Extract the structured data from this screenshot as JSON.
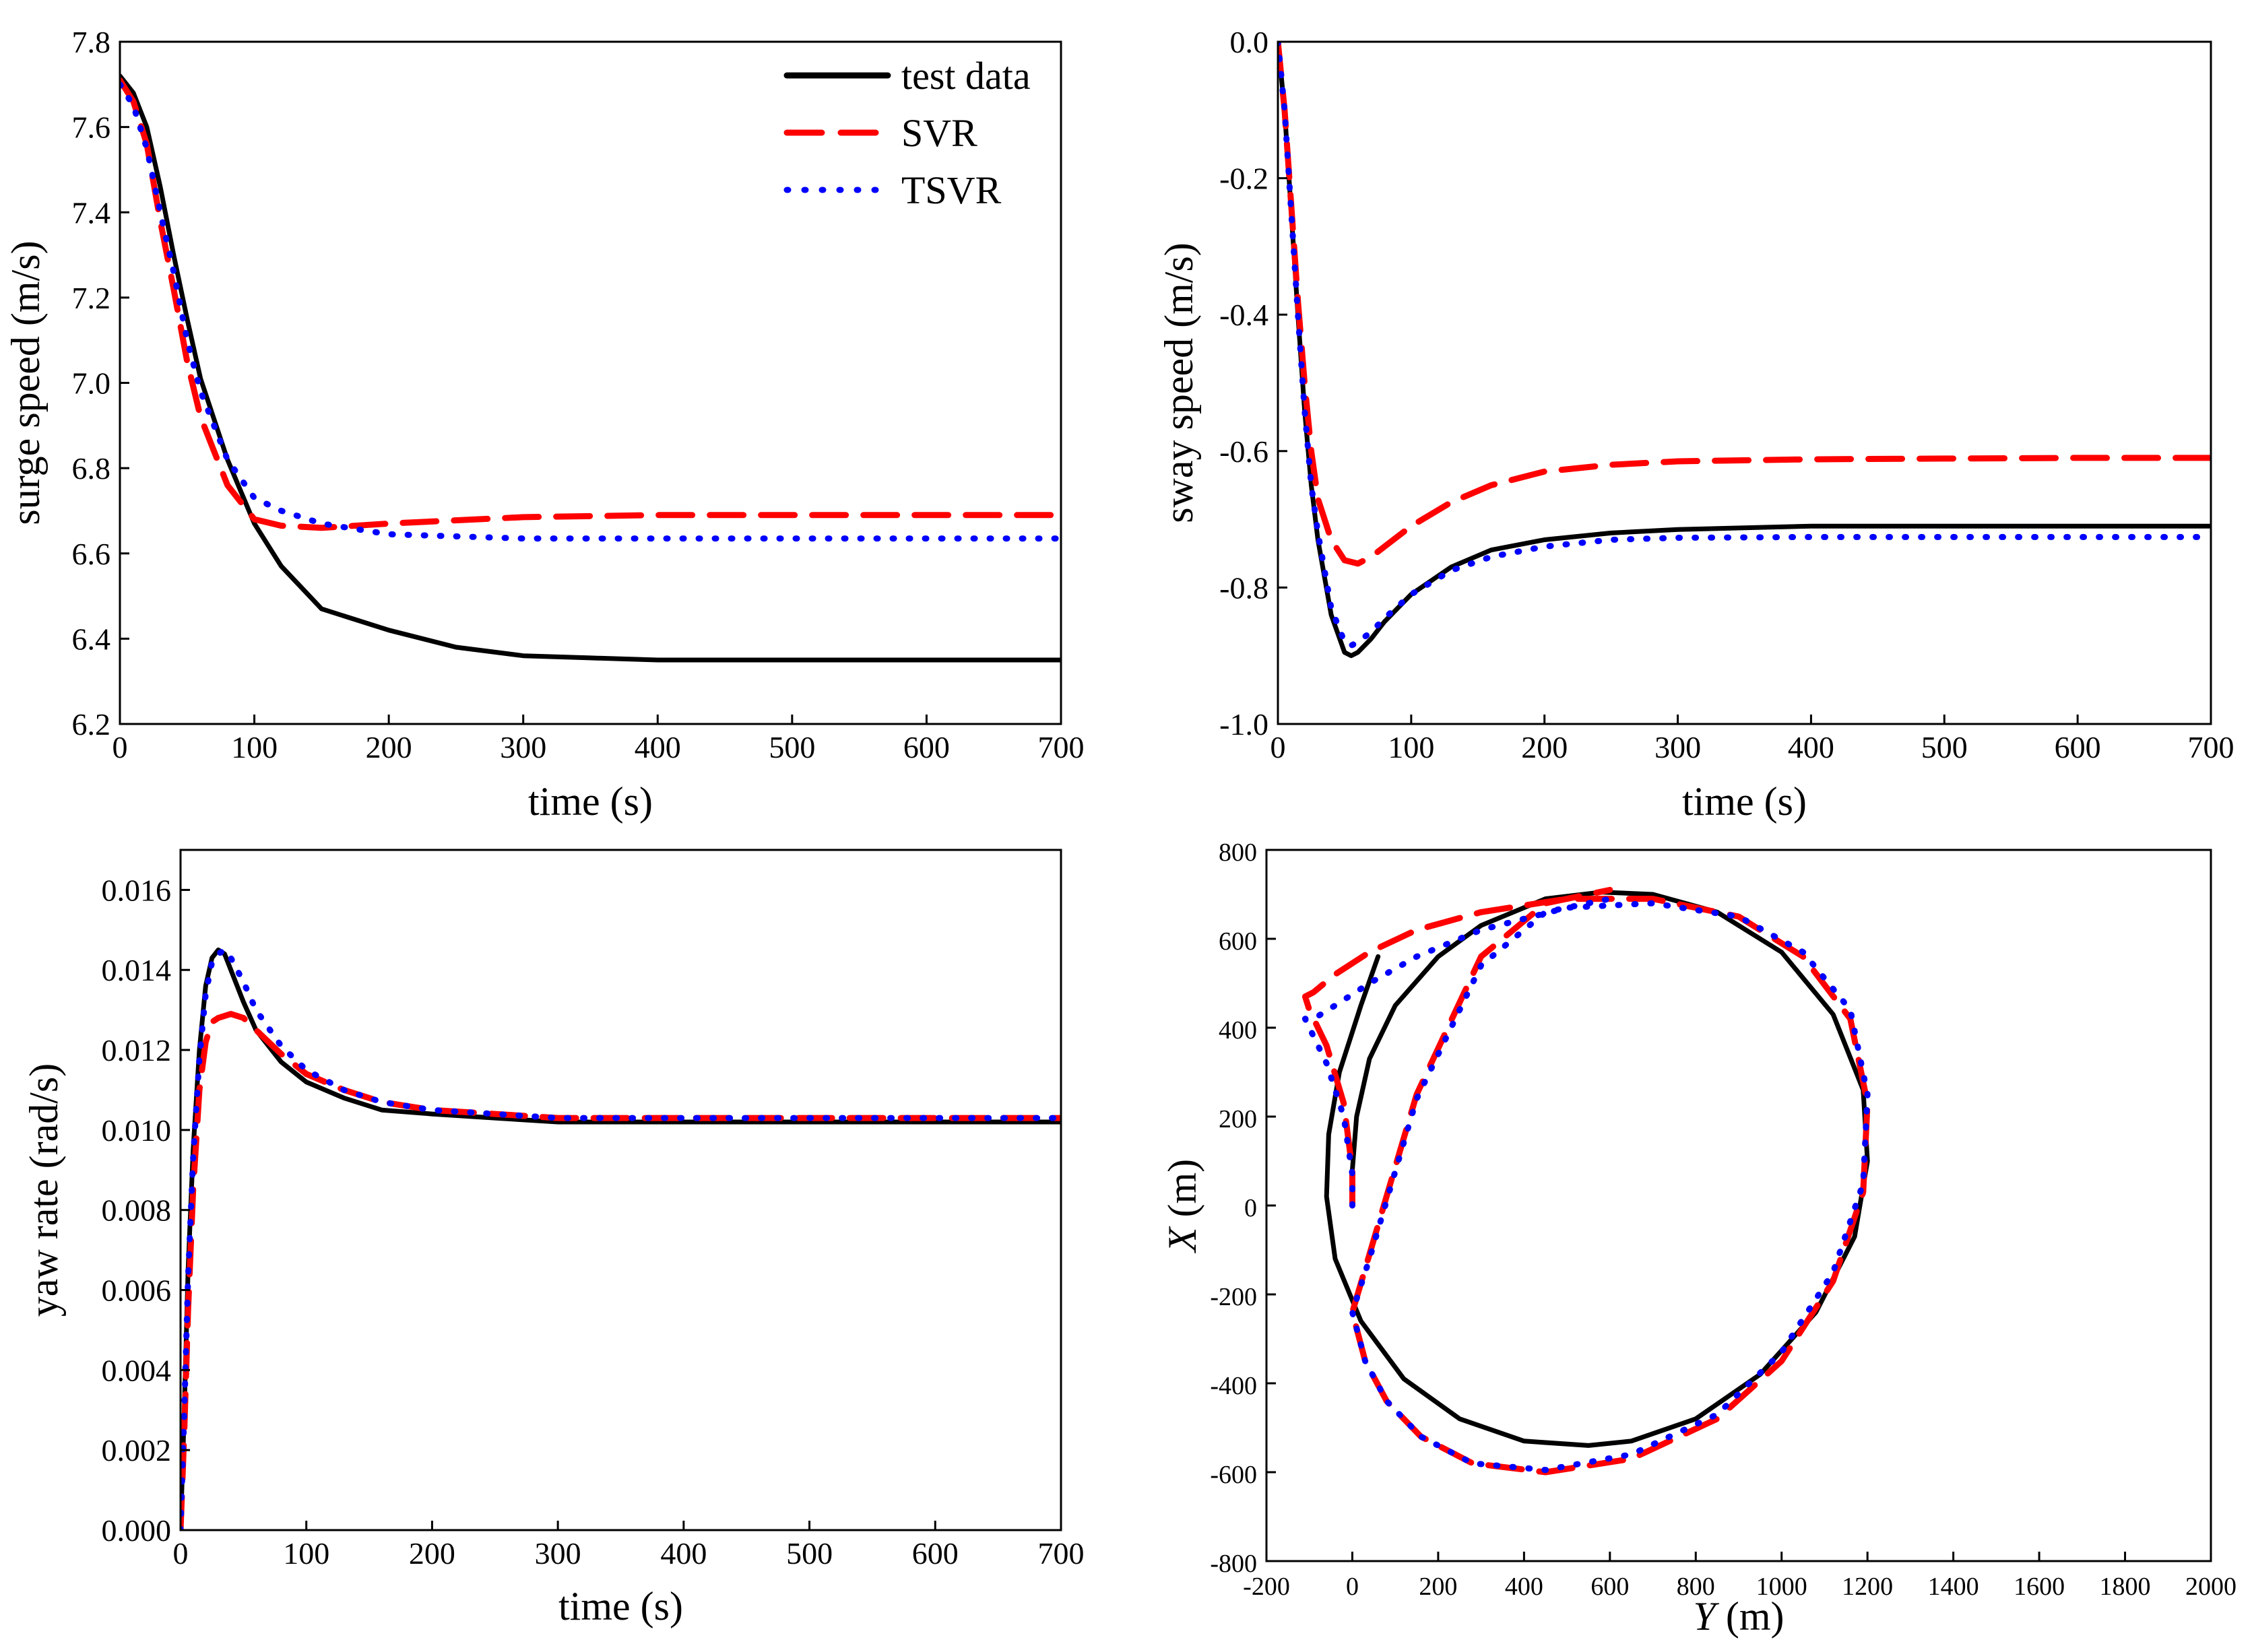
{
  "series_styles": {
    "test": {
      "name": "test data",
      "color": "#000000",
      "dash": "solid"
    },
    "svr": {
      "name": "SVR",
      "color": "#ff0000",
      "dash": "dashed"
    },
    "tsvr": {
      "name": "TSVR",
      "color": "#0000ff",
      "dash": "dotted"
    }
  },
  "chart_data": [
    {
      "id": "surge",
      "type": "line",
      "title": "",
      "xlabel": "time (s)",
      "ylabel": "surge speed (m/s)",
      "xlim": [
        0,
        700
      ],
      "ylim": [
        6.2,
        7.8
      ],
      "xticks": [
        0,
        100,
        200,
        300,
        400,
        500,
        600,
        700
      ],
      "xtick_labels": [
        "0",
        "100",
        "200",
        "300",
        "400",
        "500",
        "600",
        "700"
      ],
      "yticks": [
        6.2,
        6.4,
        6.6,
        6.8,
        7.0,
        7.2,
        7.4,
        7.6,
        7.8
      ],
      "ytick_labels": [
        "6.2",
        "6.4",
        "6.6",
        "6.8",
        "7.0",
        "7.2",
        "7.4",
        "7.6",
        "7.8"
      ],
      "legend": {
        "position": "top-right",
        "entries": [
          "test data",
          "SVR",
          "TSVR"
        ]
      },
      "series": [
        {
          "name": "test data",
          "key": "test",
          "x": [
            0,
            10,
            20,
            30,
            40,
            50,
            60,
            80,
            100,
            120,
            150,
            200,
            250,
            300,
            350,
            400,
            500,
            600,
            700
          ],
          "y": [
            7.72,
            7.68,
            7.6,
            7.46,
            7.3,
            7.15,
            7.01,
            6.82,
            6.67,
            6.57,
            6.47,
            6.42,
            6.38,
            6.36,
            6.355,
            6.35,
            6.35,
            6.35,
            6.35
          ]
        },
        {
          "name": "SVR",
          "key": "svr",
          "x": [
            0,
            10,
            20,
            30,
            40,
            50,
            60,
            80,
            100,
            120,
            150,
            200,
            300,
            400,
            500,
            600,
            700
          ],
          "y": [
            7.71,
            7.66,
            7.56,
            7.38,
            7.22,
            7.05,
            6.92,
            6.76,
            6.68,
            6.665,
            6.66,
            6.67,
            6.685,
            6.69,
            6.69,
            6.69,
            6.69
          ]
        },
        {
          "name": "TSVR",
          "key": "tsvr",
          "x": [
            0,
            10,
            20,
            30,
            40,
            50,
            60,
            80,
            100,
            120,
            150,
            200,
            300,
            400,
            500,
            600,
            700
          ],
          "y": [
            7.7,
            7.65,
            7.55,
            7.4,
            7.26,
            7.1,
            6.98,
            6.82,
            6.73,
            6.7,
            6.67,
            6.645,
            6.635,
            6.635,
            6.635,
            6.635,
            6.635
          ]
        }
      ]
    },
    {
      "id": "sway",
      "type": "line",
      "title": "",
      "xlabel": "time (s)",
      "ylabel": "sway speed (m/s)",
      "xlim": [
        0,
        700
      ],
      "ylim": [
        -1.0,
        0.0
      ],
      "xticks": [
        0,
        100,
        200,
        300,
        400,
        500,
        600,
        700
      ],
      "xtick_labels": [
        "0",
        "100",
        "200",
        "300",
        "400",
        "500",
        "600",
        "700"
      ],
      "yticks": [
        -1.0,
        -0.8,
        -0.6,
        -0.4,
        -0.2,
        0.0
      ],
      "ytick_labels": [
        "-1.0",
        "-0.8",
        "-0.6",
        "-0.4",
        "-0.2",
        "0.0"
      ],
      "series": [
        {
          "name": "test data",
          "key": "test",
          "x": [
            0,
            5,
            10,
            15,
            20,
            25,
            30,
            40,
            50,
            55,
            60,
            70,
            80,
            100,
            130,
            160,
            200,
            250,
            300,
            400,
            500,
            600,
            700
          ],
          "y": [
            0.0,
            -0.1,
            -0.25,
            -0.4,
            -0.54,
            -0.65,
            -0.73,
            -0.84,
            -0.895,
            -0.9,
            -0.895,
            -0.875,
            -0.85,
            -0.81,
            -0.77,
            -0.745,
            -0.73,
            -0.72,
            -0.715,
            -0.71,
            -0.71,
            -0.71,
            -0.71
          ]
        },
        {
          "name": "SVR",
          "key": "svr",
          "x": [
            0,
            5,
            10,
            15,
            20,
            25,
            30,
            40,
            50,
            60,
            70,
            80,
            100,
            130,
            160,
            200,
            250,
            300,
            400,
            500,
            600,
            700
          ],
          "y": [
            0.0,
            -0.1,
            -0.24,
            -0.38,
            -0.5,
            -0.6,
            -0.67,
            -0.73,
            -0.76,
            -0.765,
            -0.755,
            -0.74,
            -0.71,
            -0.675,
            -0.65,
            -0.63,
            -0.62,
            -0.615,
            -0.612,
            -0.611,
            -0.61,
            -0.61
          ]
        },
        {
          "name": "TSVR",
          "key": "tsvr",
          "x": [
            0,
            5,
            10,
            15,
            20,
            25,
            30,
            40,
            50,
            55,
            60,
            70,
            80,
            100,
            130,
            160,
            200,
            250,
            300,
            400,
            500,
            600,
            700
          ],
          "y": [
            0.0,
            -0.1,
            -0.25,
            -0.4,
            -0.54,
            -0.65,
            -0.72,
            -0.83,
            -0.88,
            -0.885,
            -0.88,
            -0.865,
            -0.845,
            -0.81,
            -0.775,
            -0.755,
            -0.74,
            -0.73,
            -0.727,
            -0.726,
            -0.726,
            -0.726,
            -0.726
          ]
        }
      ]
    },
    {
      "id": "yaw",
      "type": "line",
      "title": "",
      "xlabel": "time (s)",
      "ylabel": "yaw rate (rad/s)",
      "xlim": [
        0,
        700
      ],
      "ylim": [
        0.0,
        0.017
      ],
      "xticks": [
        0,
        100,
        200,
        300,
        400,
        500,
        600,
        700
      ],
      "xtick_labels": [
        "0",
        "100",
        "200",
        "300",
        "400",
        "500",
        "600",
        "700"
      ],
      "yticks": [
        0.0,
        0.002,
        0.004,
        0.006,
        0.008,
        0.01,
        0.012,
        0.014,
        0.016
      ],
      "ytick_labels": [
        "0.000",
        "0.002",
        "0.004",
        "0.006",
        "0.008",
        "0.010",
        "0.012",
        "0.014",
        "0.016"
      ],
      "series": [
        {
          "name": "test data",
          "key": "test",
          "x": [
            0,
            3,
            6,
            10,
            15,
            20,
            25,
            30,
            35,
            40,
            50,
            60,
            80,
            100,
            130,
            160,
            200,
            250,
            300,
            400,
            500,
            600,
            700
          ],
          "y": [
            0.0,
            0.003,
            0.0065,
            0.0095,
            0.012,
            0.0136,
            0.0143,
            0.0145,
            0.0144,
            0.014,
            0.0132,
            0.0125,
            0.0117,
            0.0112,
            0.0108,
            0.0105,
            0.0104,
            0.0103,
            0.0102,
            0.0102,
            0.0102,
            0.0102,
            0.0102
          ]
        },
        {
          "name": "SVR",
          "key": "svr",
          "x": [
            0,
            3,
            6,
            10,
            15,
            20,
            25,
            30,
            40,
            50,
            60,
            80,
            100,
            130,
            160,
            200,
            250,
            300,
            400,
            500,
            600,
            700
          ],
          "y": [
            0.0,
            0.0025,
            0.0055,
            0.0085,
            0.011,
            0.0122,
            0.0127,
            0.0128,
            0.0129,
            0.0128,
            0.0125,
            0.0119,
            0.0114,
            0.011,
            0.0107,
            0.0105,
            0.0104,
            0.0103,
            0.0103,
            0.0103,
            0.0103,
            0.0103
          ]
        },
        {
          "name": "TSVR",
          "key": "tsvr",
          "x": [
            0,
            3,
            6,
            10,
            15,
            20,
            25,
            30,
            35,
            40,
            50,
            60,
            80,
            100,
            130,
            160,
            200,
            250,
            300,
            400,
            500,
            600,
            700
          ],
          "y": [
            0.0,
            0.003,
            0.0063,
            0.0093,
            0.0118,
            0.0134,
            0.0142,
            0.0144,
            0.0145,
            0.0143,
            0.0137,
            0.013,
            0.0121,
            0.0115,
            0.011,
            0.0107,
            0.0105,
            0.0104,
            0.0103,
            0.0103,
            0.0103,
            0.0103,
            0.0103
          ]
        }
      ]
    },
    {
      "id": "traj",
      "type": "line",
      "title": "",
      "xlabel_italic": "Y",
      "xlabel_rest": " (m)",
      "ylabel_italic": "X",
      "ylabel_rest": " (m)",
      "xlim": [
        -200,
        2000
      ],
      "ylim": [
        -800,
        800
      ],
      "xticks": [
        -200,
        0,
        200,
        400,
        600,
        800,
        1000,
        1200,
        1400,
        1600,
        1800,
        2000
      ],
      "xtick_labels": [
        "-200",
        "0",
        "200",
        "400",
        "600",
        "800",
        "1000",
        "1200",
        "1400",
        "1600",
        "1800",
        "2000"
      ],
      "yticks": [
        -800,
        -600,
        -400,
        -200,
        0,
        200,
        400,
        600,
        800
      ],
      "ytick_labels": [
        "-800",
        "-600",
        "-400",
        "-200",
        "0",
        "200",
        "400",
        "600",
        "800"
      ],
      "series": [
        {
          "name": "test data",
          "key": "test",
          "x": [
            0,
            0,
            10,
            40,
            100,
            200,
            300,
            450,
            580,
            700,
            850,
            1000,
            1120,
            1190,
            1200,
            1170,
            1080,
            950,
            800,
            650,
            550,
            400,
            250,
            120,
            20,
            -40,
            -60,
            -55,
            -30,
            20,
            60
          ],
          "y": [
            0,
            80,
            200,
            330,
            450,
            560,
            630,
            690,
            705,
            700,
            660,
            570,
            430,
            260,
            100,
            -70,
            -240,
            -380,
            -480,
            -530,
            -540,
            -530,
            -480,
            -390,
            -260,
            -120,
            20,
            160,
            300,
            450,
            560
          ]
        },
        {
          "name": "SVR",
          "key": "svr",
          "x": [
            0,
            0,
            -20,
            -60,
            -100,
            -110,
            -90,
            -40,
            40,
            150,
            300,
            500,
            700,
            900,
            1050,
            1160,
            1200,
            1190,
            1120,
            1000,
            850,
            650,
            450,
            280,
            160,
            80,
            30,
            0,
            40,
            150,
            300,
            450,
            600
          ],
          "y": [
            0,
            80,
            230,
            360,
            440,
            470,
            480,
            520,
            570,
            620,
            660,
            690,
            690,
            650,
            560,
            420,
            230,
            30,
            -170,
            -350,
            -480,
            -570,
            -600,
            -580,
            -520,
            -440,
            -350,
            -240,
            -110,
            250,
            560,
            680,
            710
          ]
        },
        {
          "name": "TSVR",
          "key": "tsvr",
          "x": [
            0,
            0,
            -20,
            -60,
            -100,
            -110,
            -90,
            -40,
            40,
            150,
            300,
            500,
            700,
            900,
            1050,
            1160,
            1200,
            1190,
            1120,
            1000,
            850,
            650,
            450,
            280,
            160,
            80,
            30,
            0,
            40,
            150,
            300,
            450,
            600
          ],
          "y": [
            0,
            70,
            200,
            320,
            400,
            420,
            420,
            450,
            500,
            560,
            620,
            670,
            680,
            650,
            570,
            440,
            250,
            50,
            -150,
            -330,
            -470,
            -560,
            -595,
            -580,
            -520,
            -440,
            -350,
            -240,
            -120,
            240,
            540,
            660,
            690
          ]
        }
      ]
    }
  ]
}
